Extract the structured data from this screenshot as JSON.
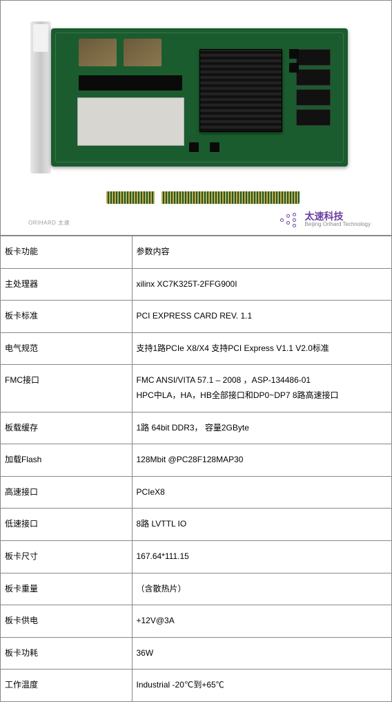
{
  "brand": {
    "cn": "太速科技",
    "en": "Beijing Orihard Technology",
    "tag": "ORIHARD 太速"
  },
  "spec": {
    "header": {
      "label": "板卡功能",
      "value": "参数内容"
    },
    "rows": [
      {
        "label": "主处理器",
        "value": "xilinx  XC7K325T-2FFG900I"
      },
      {
        "label": "板卡标准",
        "value": "PCI EXPRESS CARD REV. 1.1"
      },
      {
        "label": "电气规范",
        "value": "支持1路PCIe X8/X4 支持PCI Express V1.1 V2.0标准"
      },
      {
        "label": "FMC接口",
        "value": "FMC  ANSI/VITA 57.1 – 2008 ，ASP-134486-01\nHPC中LA，HA，HB全部接口和DP0~DP7 8路高速接口"
      },
      {
        "label": "板载缓存",
        "value": "1路 64bit DDR3， 容量2GByte"
      },
      {
        "label": "加载Flash",
        "value": "128Mbit @PC28F128MAP30"
      },
      {
        "label": "高速接口",
        "value": "PCIeX8"
      },
      {
        "label": "低速接口",
        "value": "8路 LVTTL IO"
      },
      {
        "label": "板卡尺寸",
        "value": "167.64*111.15"
      },
      {
        "label": "板卡重量",
        "value": "（含散热片）"
      },
      {
        "label": "板卡供电",
        "value": "+12V@3A"
      },
      {
        "label": "板卡功耗",
        "value": "36W"
      },
      {
        "label": "工作温度",
        "value": "Industrial  -20℃到+65℃"
      }
    ]
  }
}
